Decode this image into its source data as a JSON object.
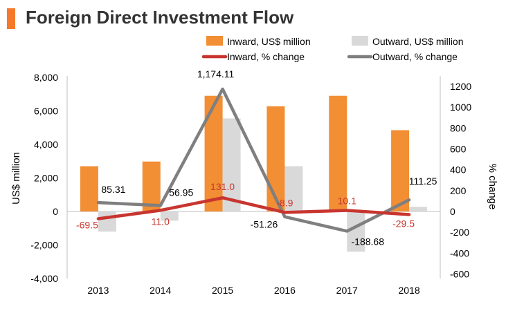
{
  "title": "Foreign Direct Investment Flow",
  "colors": {
    "accent": "#F4792A",
    "inward_bar": "#F28E33",
    "outward_bar": "#D9D9D9",
    "inward_line": "#C8352F",
    "outward_line": "#7F7F7F",
    "inward_label": "#C8352F",
    "outward_label": "#000000"
  },
  "chart_data": {
    "type": "bar",
    "categories": [
      "2013",
      "2014",
      "2015",
      "2016",
      "2017",
      "2018"
    ],
    "series": [
      {
        "name": "Inward, US$ million",
        "type": "bar",
        "axis": "left",
        "values": [
          2700,
          2980,
          6900,
          6280,
          6900,
          4850
        ]
      },
      {
        "name": "Outward, US$ million",
        "type": "bar",
        "axis": "left",
        "values": [
          -1200,
          -550,
          5550,
          2700,
          -2400,
          280
        ]
      },
      {
        "name": "Inward, % change",
        "type": "line",
        "axis": "right",
        "values": [
          -69.5,
          11.0,
          131.0,
          -8.9,
          10.1,
          -29.5
        ],
        "labels": [
          "-69.5",
          "11.0",
          "131.0",
          "-8.9",
          "10.1",
          "-29.5"
        ]
      },
      {
        "name": "Outward, % change",
        "type": "line",
        "axis": "right",
        "values": [
          85.31,
          56.95,
          1174.11,
          -51.26,
          -188.68,
          111.25
        ],
        "labels": [
          "85.31",
          "56.95",
          "1,174.11",
          "-51.26",
          "-188.68",
          "111.25"
        ]
      }
    ],
    "ylabel": "US$ million",
    "y2label": "% change",
    "ylim": [
      -4000,
      8000
    ],
    "y2lim": [
      -600,
      1300
    ],
    "yticks": [
      "-4,000",
      "-2,000",
      "0",
      "2,000",
      "4,000",
      "6,000",
      "8,000"
    ],
    "y2ticks": [
      "-600",
      "-400",
      "-200",
      "0",
      "200",
      "400",
      "600",
      "800",
      "1000",
      "1200"
    ],
    "legend_position": "top",
    "grid": false
  }
}
